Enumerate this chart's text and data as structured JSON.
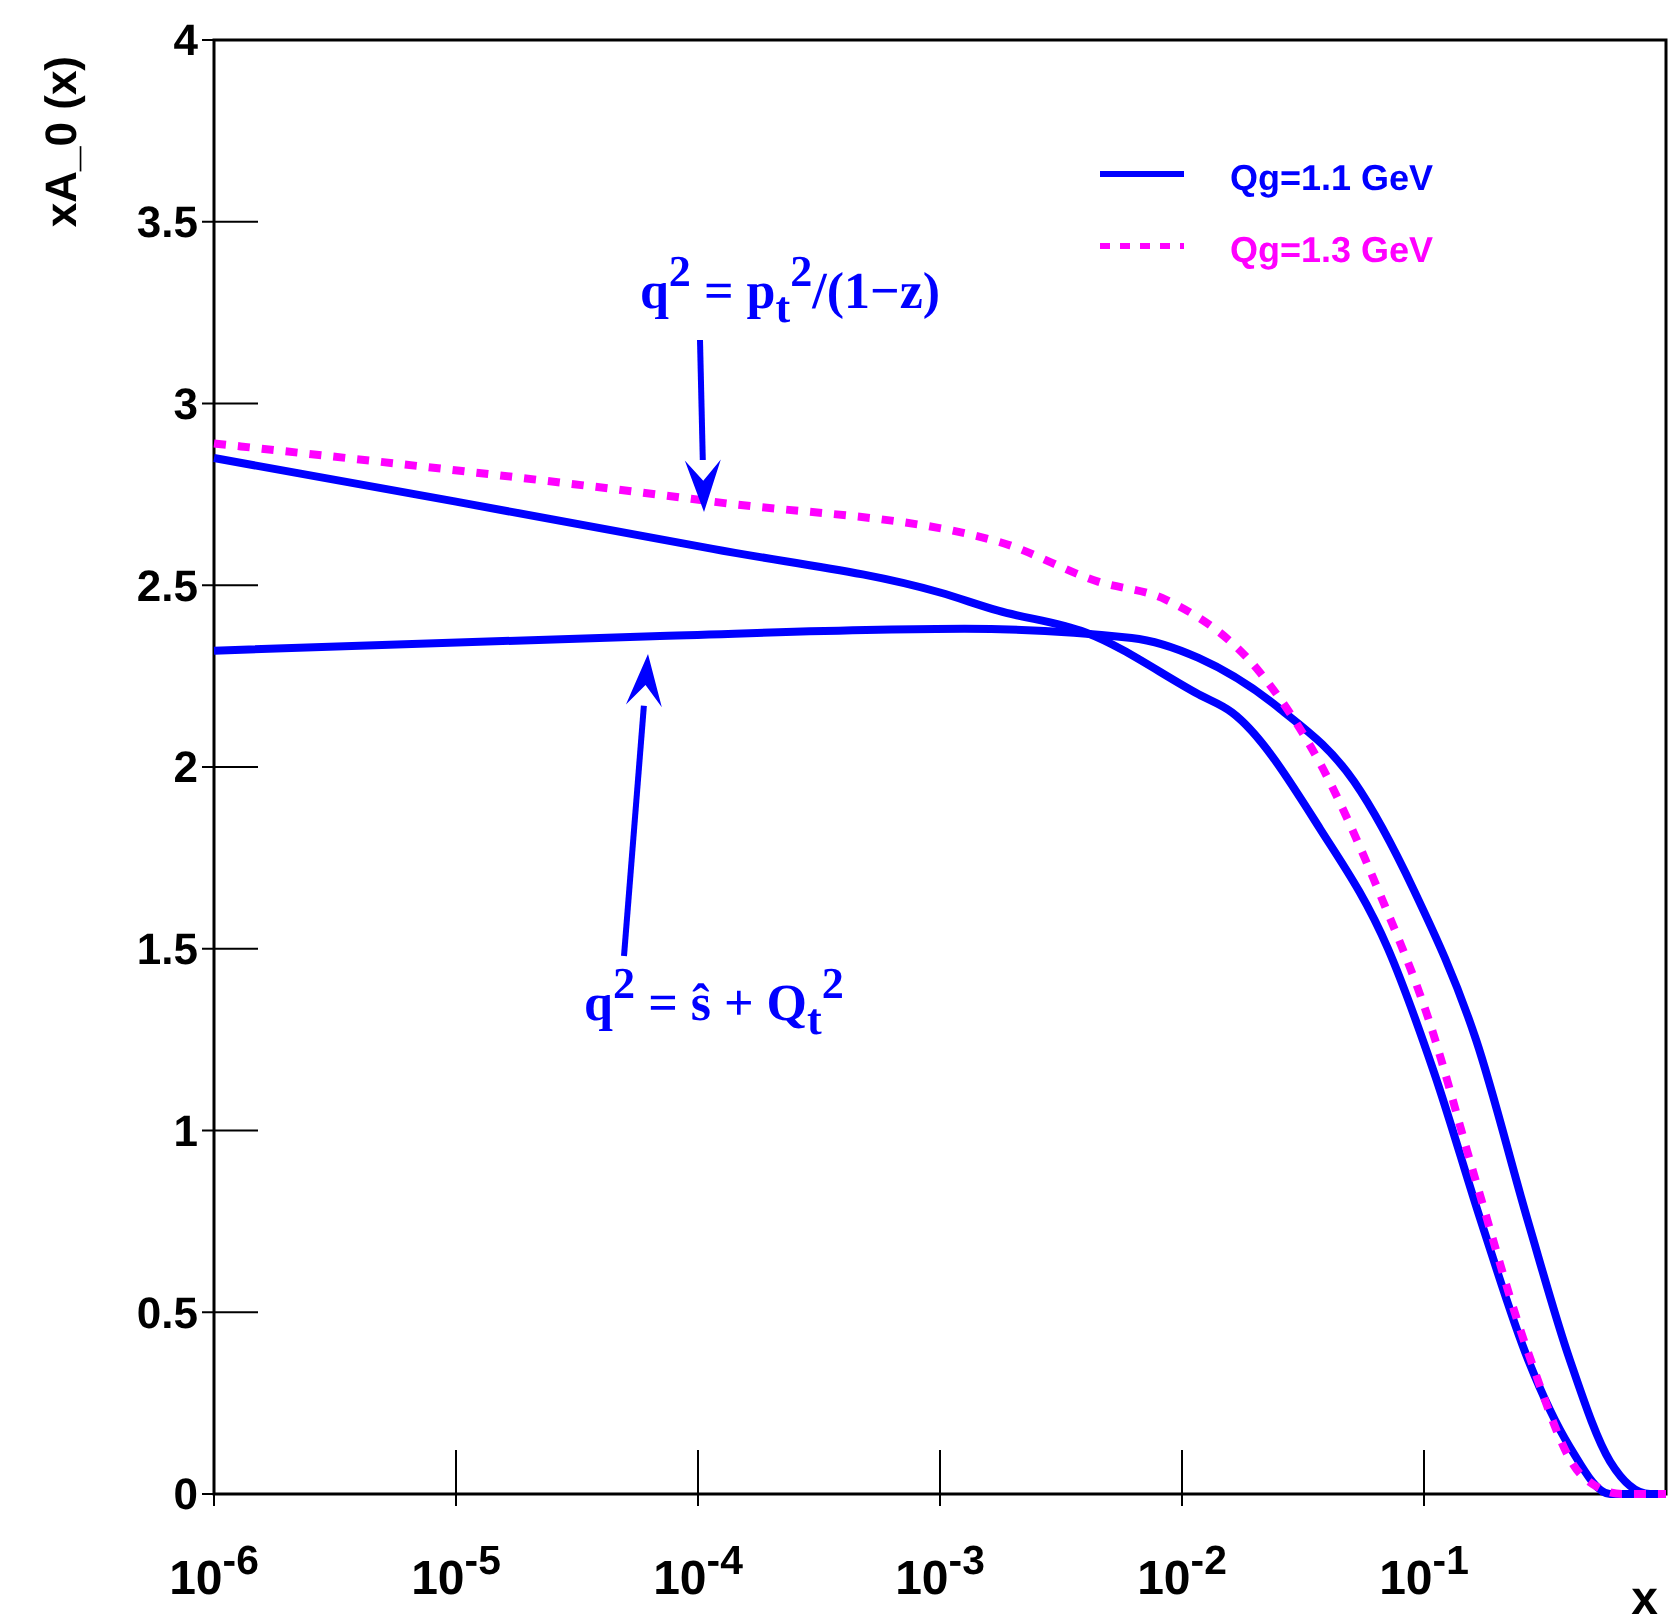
{
  "chart_data": {
    "type": "line",
    "xlabel": "x",
    "ylabel": "xA_0 (x)",
    "log": "x",
    "xlim": [
      1e-06,
      1
    ],
    "xticks": [
      {
        "value": 1e-06,
        "label": "10$^{-6}$"
      },
      {
        "value": 1e-05,
        "label": "10$^{-5}$"
      },
      {
        "value": 0.0001,
        "label": "10$^{-4}$"
      },
      {
        "value": 0.001,
        "label": "10$^{-3}$"
      },
      {
        "value": 0.01,
        "label": "10$^{-2}$"
      },
      {
        "value": 0.1,
        "label": "10$^{-1}$"
      }
    ],
    "ylim": [
      0,
      4
    ],
    "yticks": [
      0,
      0.5,
      1,
      1.5,
      2,
      2.5,
      3,
      3.5,
      4
    ],
    "grid": false,
    "legend": "top right",
    "series": [
      {
        "name": "Qg=1.1 GeV",
        "color": "#0000ff",
        "line_style": "solid",
        "x": [
          1e-06,
          1e-05,
          0.000115,
          0.001,
          0.00174,
          0.004,
          0.0117,
          0.0161,
          0.0372,
          0.071,
          0.11,
          0.174,
          0.269,
          0.4,
          0.587,
          1
        ],
        "values": [
          2.85,
          2.73,
          2.6,
          2.48,
          2.43,
          2.37,
          2.2,
          2.15,
          1.83,
          1.5,
          1.16,
          0.74,
          0.37,
          0.13,
          0,
          0
        ]
      },
      {
        "color": "#0000ff",
        "line_style": "solid",
        "x": [
          1e-06,
          6.5e-05,
          0.00126,
          0.0062,
          0.0117,
          0.0254,
          0.0514,
          0.091,
          0.164,
          0.269,
          0.4,
          0.587,
          0.86,
          1
        ],
        "values": [
          2.32,
          2.36,
          2.38,
          2.355,
          2.3,
          2.16,
          1.96,
          1.66,
          1.25,
          0.75,
          0.37,
          0.09,
          0,
          0
        ]
      },
      {
        "name": "Qg=1.3 GeV",
        "color": "#ff00ff",
        "line_style": "dashed",
        "x": [
          1e-06,
          0.000115,
          0.00174,
          0.0045,
          0.0086,
          0.021,
          0.0372,
          0.0658,
          0.104,
          0.164,
          0.269,
          0.45,
          0.658,
          1
        ],
        "values": [
          2.89,
          2.73,
          2.62,
          2.51,
          2.46,
          2.26,
          2.01,
          1.65,
          1.31,
          0.86,
          0.39,
          0.05,
          0,
          0
        ]
      }
    ],
    "annotations": [
      "q$^{2}$ = p$_{t}$$^{2}$/(1−z)",
      "q$^{2}$ = ŝ + Q$_{t}$$^{2}$"
    ]
  }
}
